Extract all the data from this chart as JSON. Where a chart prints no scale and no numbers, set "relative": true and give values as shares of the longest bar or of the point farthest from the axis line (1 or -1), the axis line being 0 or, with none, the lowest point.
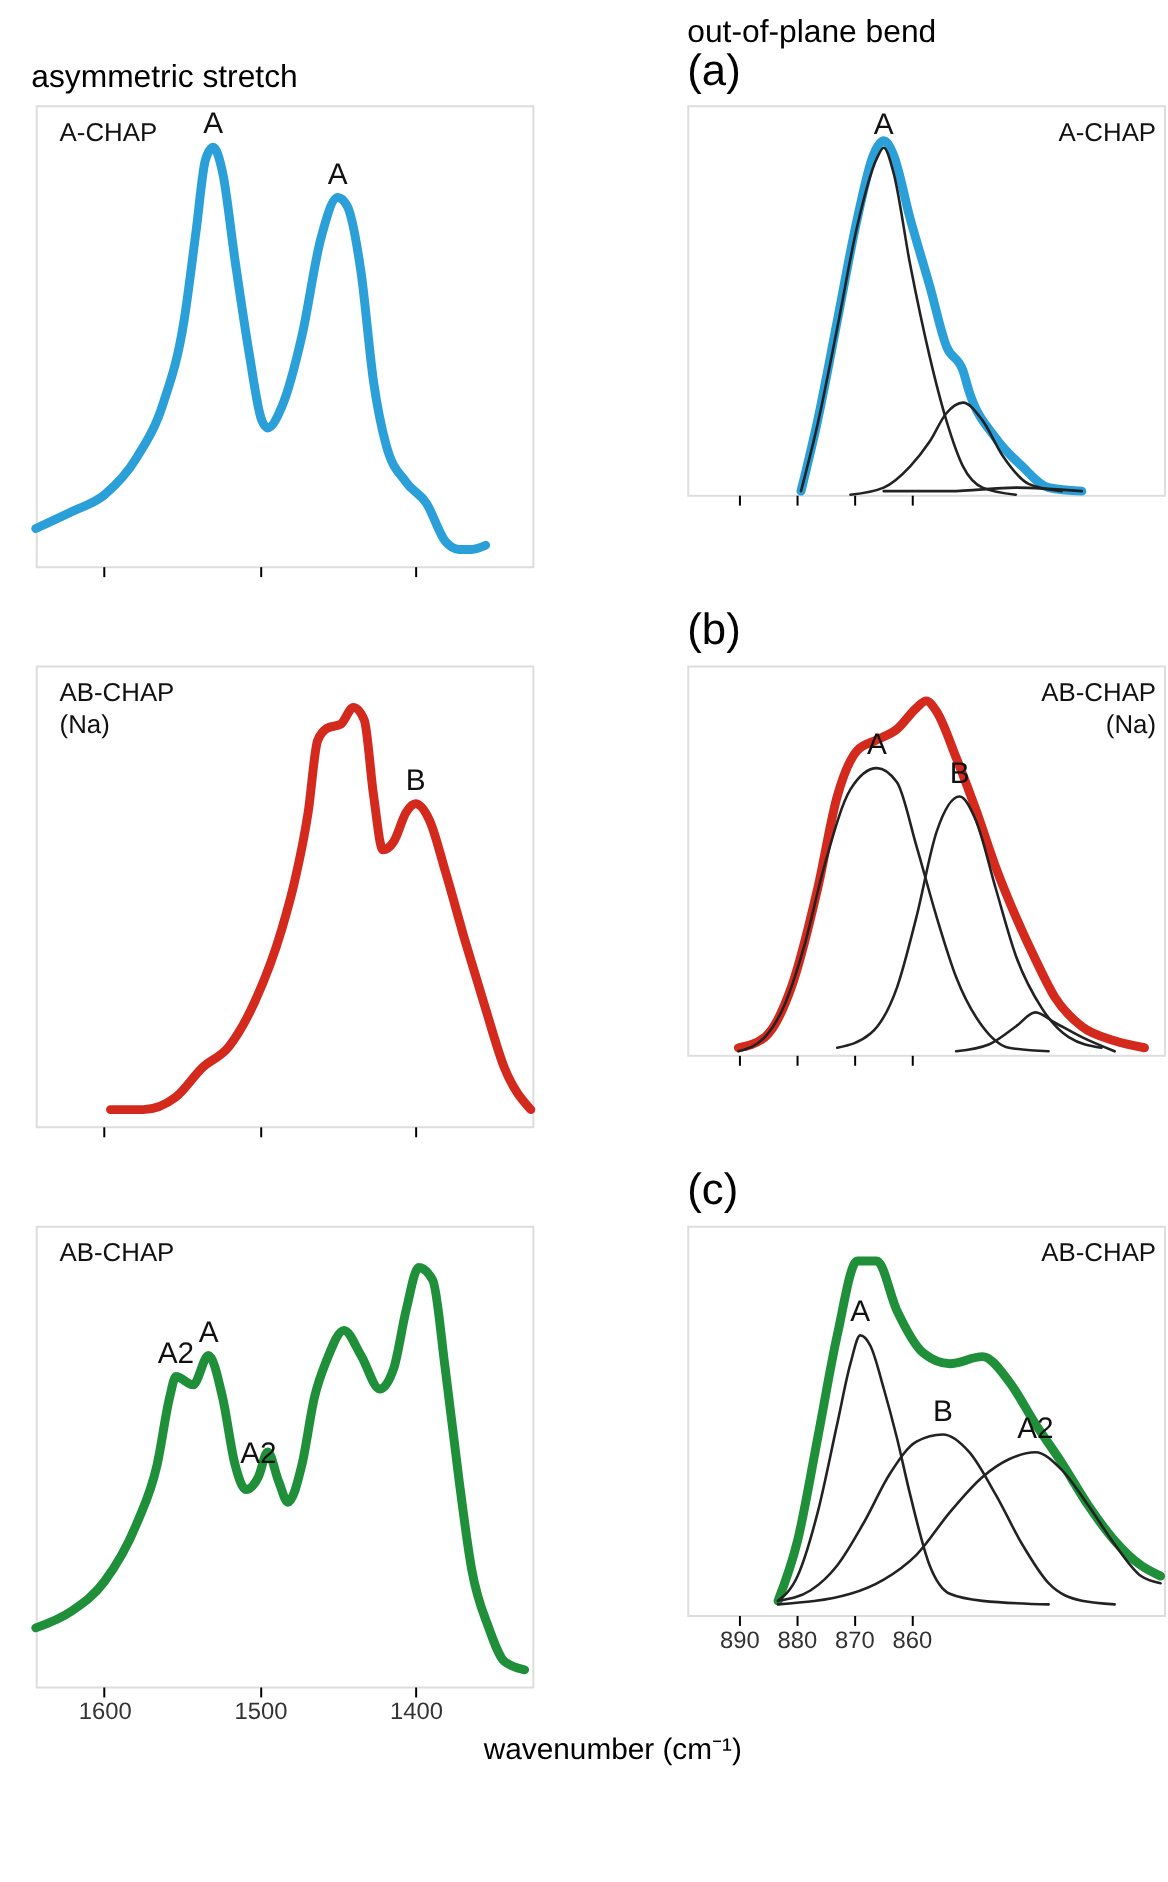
{
  "chart_data": [
    {
      "type": "line",
      "relative": true,
      "title": "asymmetric stretch",
      "xlim": [
        1644,
        1325
      ],
      "xticks": [
        1600,
        1500,
        1400
      ],
      "tick_labels": false,
      "grid": false,
      "annotations": [
        "A-CHAP",
        {
          "text": "A",
          "x": 1530,
          "y": 1
        },
        {
          "text": "A",
          "x": 1450,
          "y": 0.88
        }
      ],
      "series": [
        {
          "color": "#2a9fd8",
          "x": [
            1644,
            1621,
            1600,
            1579,
            1562,
            1549,
            1541,
            1535,
            1530,
            1524,
            1516,
            1507,
            1499,
            1495,
            1486,
            1473,
            1461,
            1450,
            1444,
            1435,
            1427,
            1419,
            1406,
            1393,
            1381,
            1372,
            1364,
            1355
          ],
          "values": [
            0.09,
            0.13,
            0.17,
            0.26,
            0.39,
            0.58,
            0.8,
            0.97,
            1,
            0.94,
            0.73,
            0.51,
            0.35,
            0.33,
            0.38,
            0.55,
            0.78,
            0.88,
            0.86,
            0.7,
            0.44,
            0.29,
            0.2,
            0.15,
            0.06,
            0.04,
            0.04,
            0.05
          ]
        }
      ]
    },
    {
      "type": "line",
      "relative": true,
      "title": "out-of-plane bend",
      "subtitle": "(a)",
      "xlim": [
        899,
        816
      ],
      "xticks": [
        890,
        880,
        870,
        860
      ],
      "tick_labels": false,
      "grid": false,
      "annotations": [
        "A-CHAP",
        {
          "text": "A",
          "x": 864.8,
          "y": 0.98
        }
      ],
      "series": [
        {
          "color": "#2a9fd8",
          "x": [
            879.2,
            876.3,
            872.9,
            869.4,
            866.6,
            864.8,
            863.1,
            860.2,
            856.8,
            853.9,
            851.0,
            849.9,
            845.3,
            840.7,
            836.1,
            830.3
          ],
          "values": [
            0.01,
            0.21,
            0.49,
            0.78,
            0.96,
            1,
            0.96,
            0.78,
            0.59,
            0.42,
            0.35,
            0.29,
            0.16,
            0.08,
            0.02,
            0.01
          ]
        },
        {
          "color": "#222222",
          "x": [
            879.2,
            876.3,
            872.9,
            869.4,
            866.0,
            864.8,
            863.1,
            860.2,
            856.8,
            853.9,
            851.0,
            847.6,
            841.8
          ],
          "values": [
            0.01,
            0.2,
            0.47,
            0.76,
            0.95,
            0.98,
            0.91,
            0.65,
            0.39,
            0.21,
            0.08,
            0.02,
            0.0
          ]
        },
        {
          "color": "#222222",
          "x": [
            870.6,
            864.8,
            860.2,
            856.8,
            853.9,
            851.0,
            847.6,
            844.1,
            839.5,
            833.8
          ],
          "values": [
            0.0,
            0.02,
            0.08,
            0.15,
            0.23,
            0.26,
            0.21,
            0.11,
            0.03,
            0.01
          ]
        },
        {
          "color": "#222222",
          "x": [
            864.8,
            853.3,
            841.8,
            830.3
          ],
          "values": [
            0.01,
            0.01,
            0.02,
            0.01
          ]
        }
      ]
    },
    {
      "type": "line",
      "relative": true,
      "xlim": [
        1644,
        1325
      ],
      "xticks": [
        1600,
        1500,
        1400
      ],
      "tick_labels": false,
      "grid": false,
      "annotations": [
        "AB-CHAP",
        "(Na)",
        {
          "text": "B",
          "x": 1400,
          "y": 0.77
        }
      ],
      "series": [
        {
          "color": "#d42a1e",
          "x": [
            1596,
            1575,
            1554,
            1537,
            1520,
            1503,
            1486,
            1478,
            1469,
            1463,
            1457,
            1448,
            1440,
            1433,
            1427,
            1421,
            1414,
            1406,
            1400,
            1391,
            1381,
            1368,
            1355,
            1343,
            1326
          ],
          "values": [
            0.04,
            0.04,
            0.07,
            0.14,
            0.19,
            0.3,
            0.47,
            0.58,
            0.75,
            0.92,
            0.95,
            0.96,
            1,
            0.97,
            0.79,
            0.66,
            0.68,
            0.75,
            0.77,
            0.73,
            0.61,
            0.44,
            0.28,
            0.14,
            0.04
          ]
        }
      ]
    },
    {
      "type": "line",
      "relative": true,
      "title": "(b)",
      "xlim": [
        899,
        816
      ],
      "xticks": [
        890,
        880,
        870,
        860
      ],
      "tick_labels": false,
      "grid": false,
      "annotations": [
        "AB-CHAP",
        "(Na)",
        {
          "text": "A",
          "x": 866.0,
          "y": 0.81
        },
        {
          "text": "B",
          "x": 851.6,
          "y": 0.73
        }
      ],
      "series": [
        {
          "color": "#d42a1e",
          "x": [
            890.1,
            885.5,
            880.9,
            876.3,
            872.9,
            869.4,
            866.0,
            862.5,
            859.1,
            857.4,
            855.6,
            852.2,
            848.7,
            845.3,
            841.8,
            838.4,
            834.9,
            830.3,
            824.6,
            819.4
          ],
          "values": [
            0.02,
            0.05,
            0.19,
            0.47,
            0.73,
            0.86,
            0.89,
            0.92,
            0.98,
            1,
            0.97,
            0.84,
            0.69,
            0.53,
            0.39,
            0.27,
            0.16,
            0.08,
            0.04,
            0.02
          ]
        },
        {
          "color": "#222222",
          "x": [
            890.1,
            885.5,
            882.1,
            878.6,
            875.2,
            870.6,
            866.0,
            862.5,
            859.1,
            855.6,
            852.2,
            847.6,
            843.0,
            836.1
          ],
          "values": [
            0.01,
            0.05,
            0.14,
            0.31,
            0.53,
            0.75,
            0.81,
            0.77,
            0.59,
            0.39,
            0.22,
            0.08,
            0.02,
            0.01
          ]
        },
        {
          "color": "#222222",
          "x": [
            872.9,
            867.1,
            862.5,
            859.1,
            855.6,
            851.6,
            848.7,
            845.3,
            841.8,
            837.2,
            832.6,
            826.9
          ],
          "values": [
            0.02,
            0.06,
            0.19,
            0.39,
            0.63,
            0.73,
            0.66,
            0.47,
            0.28,
            0.13,
            0.05,
            0.02
          ]
        },
        {
          "color": "#222222",
          "x": [
            852.2,
            846.4,
            841.8,
            838.4,
            834.9,
            830.3,
            824.6
          ],
          "values": [
            0.01,
            0.03,
            0.08,
            0.12,
            0.09,
            0.05,
            0.01
          ]
        }
      ]
    },
    {
      "type": "line",
      "relative": true,
      "xlabel": "wavenumber (cm⁻¹)",
      "xlim": [
        1644,
        1325
      ],
      "xticks": [
        1600,
        1500,
        1400
      ],
      "tick_labels": "x",
      "grid": false,
      "annotations": [
        "AB-CHAP",
        {
          "text": "A2",
          "x": 1554,
          "y": 0.74
        },
        {
          "text": "A",
          "x": 1533,
          "y": 0.79
        },
        {
          "text": "A2",
          "x": 1501,
          "y": 0.5
        }
      ],
      "series": [
        {
          "color": "#1f8f3a",
          "x": [
            1644,
            1621,
            1600,
            1579,
            1566,
            1558,
            1554,
            1543,
            1533,
            1524,
            1516,
            1509,
            1501,
            1495,
            1488,
            1482,
            1473,
            1465,
            1457,
            1446,
            1435,
            1423,
            1414,
            1406,
            1398,
            1389,
            1381,
            1372,
            1364,
            1353,
            1343,
            1330
          ],
          "values": [
            0.14,
            0.18,
            0.25,
            0.39,
            0.53,
            0.69,
            0.74,
            0.72,
            0.79,
            0.69,
            0.53,
            0.47,
            0.5,
            0.56,
            0.49,
            0.44,
            0.53,
            0.69,
            0.78,
            0.85,
            0.79,
            0.71,
            0.76,
            0.9,
            1,
            0.97,
            0.76,
            0.49,
            0.28,
            0.14,
            0.06,
            0.04
          ]
        }
      ]
    },
    {
      "type": "line",
      "relative": true,
      "title": "(c)",
      "xlim": [
        899,
        816
      ],
      "xticks": [
        890,
        880,
        870,
        860
      ],
      "tick_labels": "x",
      "grid": false,
      "annotations": [
        "AB-CHAP",
        {
          "text": "A",
          "x": 868.9,
          "y": 0.79
        },
        {
          "text": "B",
          "x": 854.5,
          "y": 0.51
        },
        {
          "text": "A2",
          "x": 838.4,
          "y": 0.46
        }
      ],
      "series": [
        {
          "color": "#1f8f3a",
          "x": [
            883.2,
            879.8,
            876.3,
            872.9,
            869.4,
            866.0,
            862.5,
            857.9,
            853.3,
            847.6,
            843.0,
            838.4,
            833.8,
            829.2,
            824.6,
            820.0,
            816.6
          ],
          "values": [
            0.04,
            0.21,
            0.5,
            0.79,
            1,
            1,
            0.86,
            0.74,
            0.71,
            0.73,
            0.66,
            0.54,
            0.43,
            0.31,
            0.21,
            0.14,
            0.11
          ]
        },
        {
          "color": "#222222",
          "x": [
            883.2,
            879.8,
            876.3,
            872.9,
            870.6,
            868.9,
            867.1,
            864.8,
            862.5,
            860.2,
            856.8,
            853.3,
            847.6,
            836.1
          ],
          "values": [
            0.04,
            0.11,
            0.29,
            0.54,
            0.71,
            0.79,
            0.76,
            0.64,
            0.5,
            0.34,
            0.14,
            0.06,
            0.04,
            0.03
          ]
        },
        {
          "color": "#222222",
          "x": [
            883.2,
            877.5,
            872.9,
            868.3,
            863.7,
            859.1,
            854.5,
            849.9,
            845.3,
            840.7,
            836.1,
            830.3,
            824.6
          ],
          "values": [
            0.04,
            0.07,
            0.14,
            0.26,
            0.4,
            0.49,
            0.51,
            0.46,
            0.34,
            0.2,
            0.09,
            0.04,
            0.03
          ]
        },
        {
          "color": "#222222",
          "x": [
            883.2,
            870.6,
            864.8,
            859.1,
            853.3,
            847.6,
            843.0,
            838.4,
            833.8,
            829.2,
            824.6,
            820.0,
            816.6
          ],
          "values": [
            0.03,
            0.06,
            0.1,
            0.17,
            0.29,
            0.39,
            0.44,
            0.46,
            0.41,
            0.31,
            0.2,
            0.11,
            0.09
          ]
        }
      ]
    }
  ]
}
